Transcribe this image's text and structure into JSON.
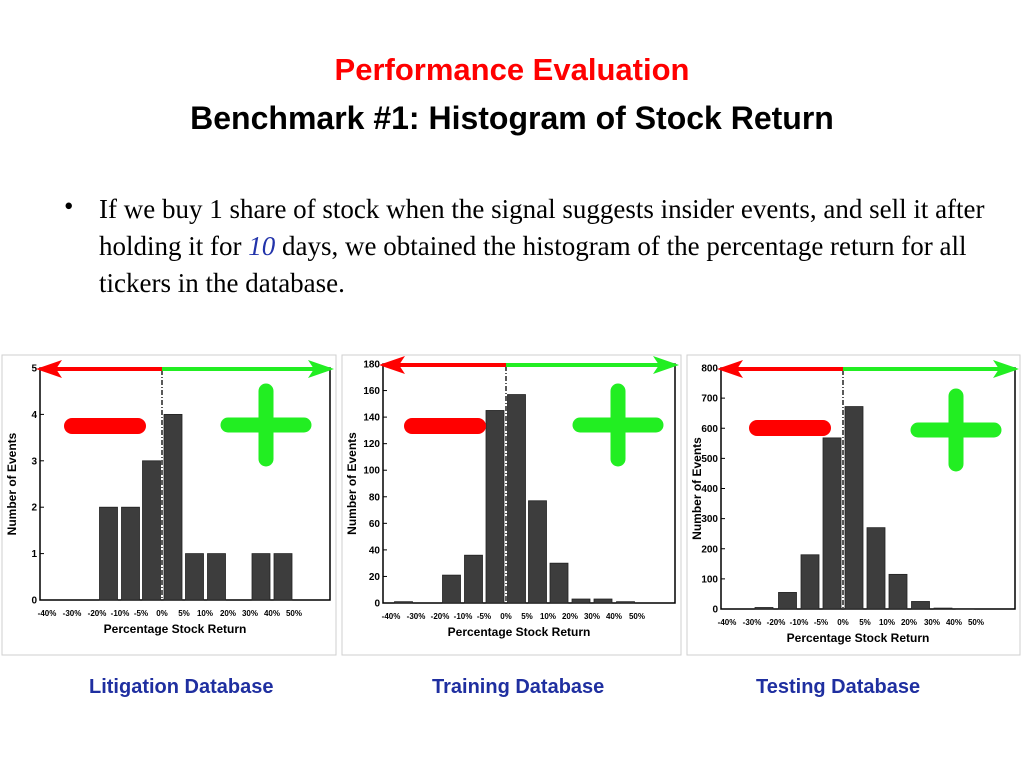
{
  "title": {
    "line1": "Performance Evaluation",
    "line2": "Benchmark #1: Histogram of Stock Return"
  },
  "body": {
    "bullet": "•",
    "text_part1": "If we buy 1 share of stock when the signal suggests insider events, and sell it after holding it for ",
    "holding_days": "10",
    "text_part2": " days, we obtained the histogram of the percentage return for all tickers in the database."
  },
  "colors": {
    "bar": "#3d3d3d",
    "minus": "#ff0000",
    "plus": "#22ee22",
    "title": "#ff0000",
    "caption": "#1f2fa0"
  },
  "chart_data": [
    {
      "type": "bar",
      "caption": "Litigation Database",
      "xlabel": "Percentage Stock Return",
      "ylabel": "Number of Events",
      "tick_labels": [
        "-40%",
        "-30%",
        "-20%",
        "-10%",
        "-5%",
        "0%",
        "5%",
        "10%",
        "20%",
        "30%",
        "40%",
        "50%"
      ],
      "categories": [
        "-40% to -30%",
        "-30% to -20%",
        "-20% to -10%",
        "-10% to -5%",
        "-5% to 0%",
        "0% to 5%",
        "5% to 10%",
        "10% to 20%",
        "20% to 30%",
        "30% to 40%",
        "40% to 50%"
      ],
      "values": [
        0,
        0,
        2,
        2,
        3,
        4,
        1,
        1,
        0,
        1,
        1
      ],
      "ylim": [
        0,
        5
      ],
      "yticks": [
        0,
        1,
        2,
        3,
        4,
        5
      ],
      "zero_line_at": "0%",
      "minus_symbol": "−",
      "plus_symbol": "+"
    },
    {
      "type": "bar",
      "caption": "Training Database",
      "xlabel": "Percentage Stock Return",
      "ylabel": "Number of Events",
      "tick_labels": [
        "-40%",
        "-30%",
        "-20%",
        "-10%",
        "-5%",
        "0%",
        "5%",
        "10%",
        "20%",
        "30%",
        "40%",
        "50%"
      ],
      "categories": [
        "-40% to -30%",
        "-30% to -20%",
        "-20% to -10%",
        "-10% to -5%",
        "-5% to 0%",
        "0% to 5%",
        "5% to 10%",
        "10% to 20%",
        "20% to 30%",
        "30% to 40%",
        "40% to 50%"
      ],
      "values": [
        1,
        0,
        21,
        36,
        145,
        157,
        77,
        30,
        3,
        3,
        1
      ],
      "ylim": [
        0,
        180
      ],
      "yticks": [
        0,
        20,
        40,
        60,
        80,
        100,
        120,
        140,
        160,
        180
      ],
      "zero_line_at": "0%",
      "minus_symbol": "−",
      "plus_symbol": "+"
    },
    {
      "type": "bar",
      "caption": "Testing Database",
      "xlabel": "Percentage Stock Return",
      "ylabel": "Number of Events",
      "tick_labels": [
        "-40%",
        "-30%",
        "-20%",
        "-10%",
        "-5%",
        "0%",
        "5%",
        "10%",
        "20%",
        "30%",
        "40%",
        "50%"
      ],
      "categories": [
        "-40% to -30%",
        "-30% to -20%",
        "-20% to -10%",
        "-10% to -5%",
        "-5% to 0%",
        "0% to 5%",
        "5% to 10%",
        "10% to 20%",
        "20% to 30%",
        "30% to 40%",
        "40% to 50%"
      ],
      "values": [
        0,
        5,
        55,
        180,
        568,
        672,
        270,
        115,
        25,
        3,
        1
      ],
      "ylim": [
        0,
        800
      ],
      "yticks": [
        0,
        100,
        200,
        300,
        400,
        500,
        600,
        700,
        800
      ],
      "zero_line_at": "0%",
      "minus_symbol": "−",
      "plus_symbol": "+"
    }
  ]
}
